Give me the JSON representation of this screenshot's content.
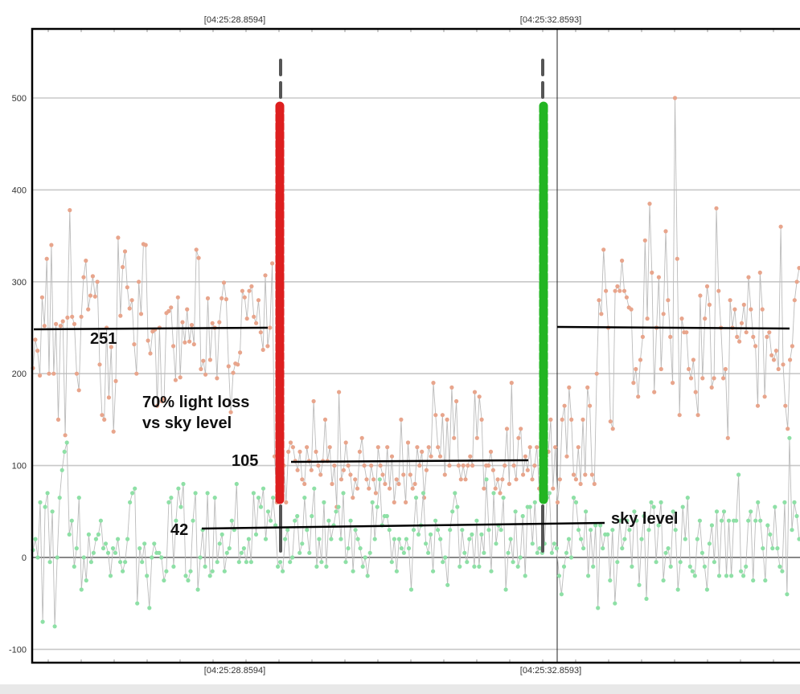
{
  "chart_data": {
    "type": "line",
    "title": "",
    "xlabel": "",
    "ylabel": "",
    "x_time_labels": [
      "[04:25:28.8594]",
      "[04:25:32.8593]"
    ],
    "ylim": [
      -110,
      600
    ],
    "yticks": [
      -100,
      0,
      100,
      200,
      300,
      400,
      500
    ],
    "grid": true,
    "colors": {
      "series_target": "#e8a58c",
      "series_sky": "#8ee0a6",
      "connector": "#bbbbbb",
      "ingress_marker": "#dd1f1f",
      "egress_marker": "#22b522",
      "guide_dash": "#555555",
      "level_line": "#000000"
    },
    "series": [
      {
        "values": [
          206,
          237,
          225,
          198,
          283,
          252,
          325,
          200,
          340,
          200,
          254,
          150,
          252,
          257,
          133,
          261,
          378,
          262,
          254,
          200,
          182,
          262,
          305,
          323,
          270,
          285,
          306,
          284,
          300,
          210,
          155,
          150,
          250,
          174,
          229,
          137,
          192,
          348,
          263,
          316,
          333,
          294,
          271,
          280,
          232,
          200,
          300,
          265,
          341,
          340,
          236,
          222,
          246,
          248,
          165,
          250,
          170,
          173,
          266,
          268,
          272,
          230,
          193,
          283,
          196,
          256,
          234,
          270,
          235,
          253,
          232,
          335,
          326,
          205,
          214,
          199,
          282,
          215,
          255,
          250,
          195,
          256,
          282,
          299,
          281,
          208,
          158,
          201,
          211,
          210,
          223,
          290,
          283,
          260,
          290,
          295,
          262,
          255,
          280,
          245,
          226,
          307,
          230,
          250,
          320,
          110,
          60,
          110,
          70,
          100,
          60,
          115,
          125,
          120,
          105,
          95,
          115,
          85,
          80,
          120,
          105,
          95,
          170,
          115,
          100,
          90,
          105,
          150,
          105,
          120,
          80,
          100,
          55,
          180,
          85,
          95,
          125,
          100,
          90,
          65,
          85,
          75,
          115,
          130,
          100,
          85,
          75,
          100,
          85,
          70,
          120,
          100,
          90,
          80,
          120,
          75,
          110,
          60,
          85,
          80,
          150,
          90,
          60,
          125,
          90,
          75,
          80,
          120,
          100,
          115,
          65,
          95,
          120,
          110,
          190,
          155,
          120,
          110,
          155,
          90,
          150,
          100,
          185,
          130,
          170,
          100,
          85,
          100,
          85,
          100,
          110,
          100,
          180,
          130,
          175,
          150,
          75,
          100,
          100,
          115,
          95,
          75,
          85,
          70,
          85,
          100,
          140,
          80,
          190,
          100,
          85,
          130,
          140,
          90,
          110,
          95,
          120,
          85,
          100,
          120,
          75,
          100,
          85,
          110,
          115,
          150,
          75,
          120,
          60,
          85,
          150,
          165,
          110,
          185,
          150,
          90,
          85,
          120,
          80,
          150,
          90,
          185,
          165,
          90,
          80,
          200,
          280,
          265,
          335,
          290,
          250,
          148,
          140,
          290,
          295,
          290,
          323,
          290,
          283,
          272,
          270,
          190,
          205,
          175,
          215,
          240,
          345,
          260,
          385,
          310,
          180,
          250,
          305,
          205,
          265,
          355,
          280,
          240,
          190,
          500,
          325,
          155,
          260,
          245,
          245,
          205,
          195,
          215,
          180,
          155,
          285,
          195,
          260,
          295,
          275,
          185,
          195,
          380,
          290,
          250,
          195,
          205,
          130,
          280,
          250,
          270,
          240,
          235,
          255,
          275,
          245,
          305,
          270,
          240,
          230,
          165,
          310,
          270,
          175,
          240,
          245,
          220,
          215,
          225,
          205,
          360,
          210,
          165,
          140,
          215,
          230,
          280,
          300,
          315
        ]
      },
      {
        "values": [
          8,
          20,
          0,
          60,
          -70,
          55,
          70,
          -5,
          50,
          -75,
          0,
          65,
          95,
          115,
          125,
          25,
          40,
          -10,
          10,
          65,
          -35,
          0,
          -25,
          25,
          -5,
          5,
          20,
          25,
          40,
          10,
          15,
          5,
          -20,
          10,
          5,
          20,
          -5,
          -15,
          -5,
          20,
          60,
          70,
          75,
          -50,
          10,
          -5,
          15,
          -20,
          -55,
          0,
          15,
          5,
          5,
          0,
          -25,
          -15,
          60,
          65,
          -10,
          40,
          75,
          55,
          80,
          -20,
          -25,
          -15,
          40,
          70,
          -35,
          0,
          30,
          -10,
          70,
          -20,
          -15,
          65,
          -5,
          15,
          25,
          -15,
          5,
          10,
          40,
          30,
          80,
          -5,
          5,
          10,
          -5,
          20,
          -5,
          70,
          25,
          65,
          55,
          75,
          20,
          50,
          40,
          65,
          35,
          -10,
          -5,
          -15,
          20,
          30,
          -5,
          0,
          40,
          45,
          5,
          15,
          65,
          30,
          5,
          45,
          75,
          -10,
          20,
          -5,
          60,
          -10,
          40,
          20,
          35,
          50,
          55,
          20,
          70,
          -5,
          10,
          40,
          -15,
          30,
          20,
          10,
          -10,
          0,
          -20,
          5,
          60,
          20,
          55,
          85,
          35,
          45,
          45,
          30,
          -5,
          20,
          -15,
          20,
          10,
          5,
          20,
          10,
          -35,
          30,
          65,
          25,
          35,
          70,
          15,
          5,
          25,
          -15,
          40,
          30,
          20,
          -5,
          0,
          -30,
          30,
          50,
          70,
          55,
          -10,
          30,
          5,
          -5,
          20,
          25,
          -10,
          40,
          -10,
          25,
          5,
          85,
          30,
          -15,
          70,
          15,
          35,
          30,
          65,
          -35,
          5,
          20,
          -5,
          50,
          -10,
          0,
          45,
          -20,
          55,
          55,
          15,
          60,
          5,
          10,
          5,
          15,
          65,
          70,
          5,
          15,
          10,
          -20,
          -40,
          -10,
          5,
          20,
          0,
          65,
          60,
          30,
          20,
          10,
          50,
          -20,
          30,
          -10,
          35,
          -55,
          35,
          10,
          25,
          25,
          -25,
          30,
          -50,
          -5,
          40,
          10,
          20,
          40,
          30,
          -10,
          50,
          40,
          -30,
          20,
          45,
          -45,
          30,
          60,
          55,
          -5,
          35,
          60,
          -25,
          5,
          10,
          -10,
          50,
          30,
          -35,
          -5,
          55,
          20,
          65,
          -10,
          -15,
          -20,
          20,
          40,
          5,
          -10,
          -35,
          15,
          35,
          -5,
          50,
          -20,
          40,
          50,
          -20,
          40,
          -20,
          40,
          40,
          90,
          -15,
          -20,
          -10,
          40,
          50,
          -25,
          40,
          60,
          40,
          10,
          -25,
          35,
          25,
          10,
          55,
          10,
          -10,
          -15,
          60,
          -40,
          130,
          30,
          60,
          45,
          20
        ]
      }
    ],
    "levels": [
      {
        "label": "251",
        "value": 251
      },
      {
        "label": "105",
        "value": 105
      },
      {
        "label": "42",
        "value": 42
      }
    ],
    "annotations": [
      {
        "text": "70% light loss"
      },
      {
        "text": "vs sky level"
      },
      {
        "text": "sky level"
      }
    ]
  }
}
